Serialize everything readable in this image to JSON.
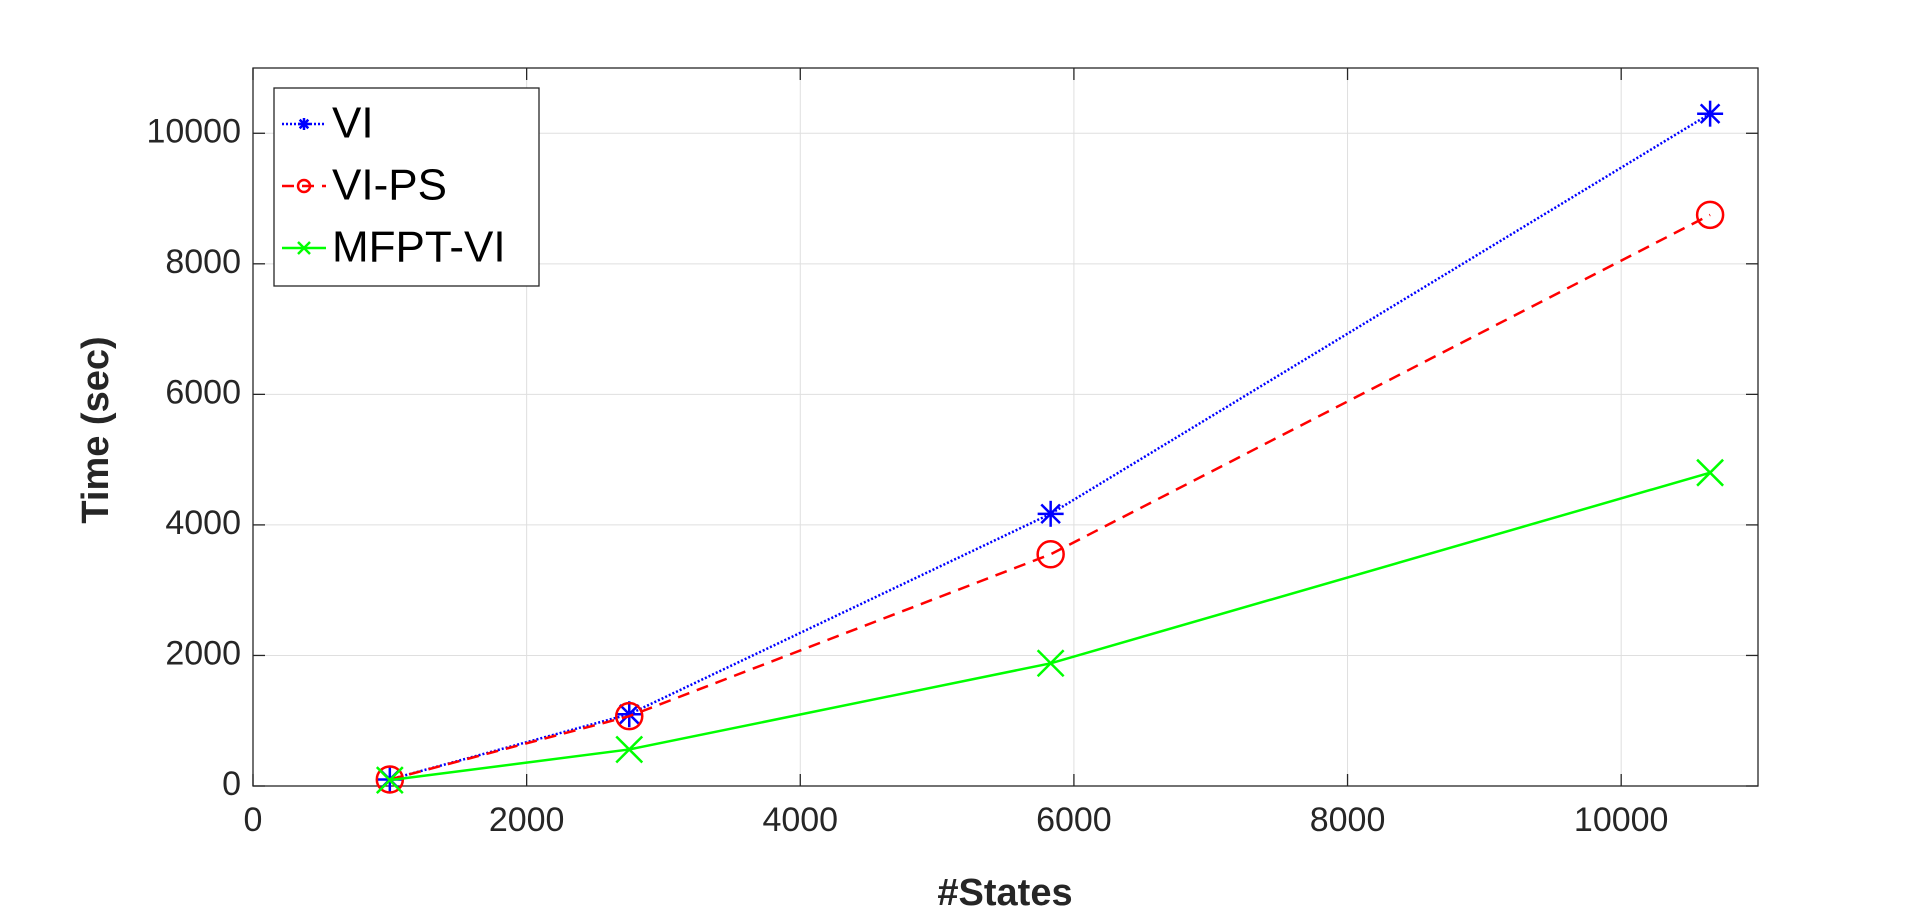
{
  "chart_data": {
    "type": "line",
    "x_label": "#States",
    "y_label": "Time (sec)",
    "x": [
      1000,
      2750,
      5830,
      10650
    ],
    "series": [
      {
        "name": "VI",
        "color": "#0000ff",
        "dash": "dotted",
        "marker": "asterisk",
        "values": [
          100,
          1100,
          4170,
          10300
        ]
      },
      {
        "name": "VI-PS",
        "color": "#ff0000",
        "dash": "dashed",
        "marker": "circle",
        "values": [
          100,
          1070,
          3550,
          8750
        ]
      },
      {
        "name": "MFPT-VI",
        "color": "#00ff00",
        "dash": "solid",
        "marker": "cross",
        "values": [
          90,
          560,
          1880,
          4800
        ]
      }
    ],
    "xlim": [
      0,
      11000
    ],
    "ylim": [
      0,
      11000
    ],
    "xticks": [
      0,
      2000,
      4000,
      6000,
      8000,
      10000
    ],
    "yticks": [
      0,
      2000,
      4000,
      6000,
      8000,
      10000
    ],
    "grid": true,
    "legend": "top-left"
  }
}
